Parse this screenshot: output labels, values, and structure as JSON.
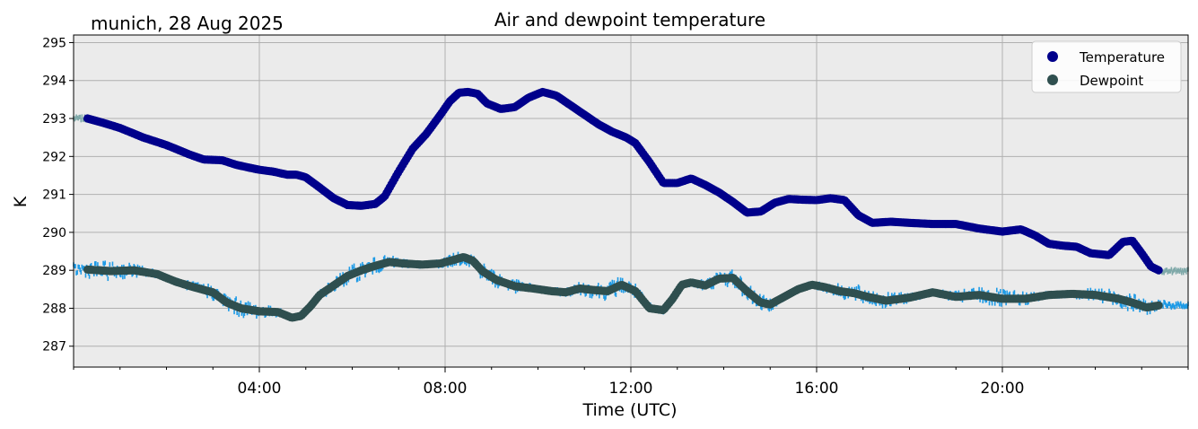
{
  "header": {
    "location_date": "munich, 28 Aug 2025",
    "title": "Air and dewpoint temperature"
  },
  "colors": {
    "background": "#ebebeb",
    "grid": "#b0b0b0",
    "temperature": "#00008b",
    "dewpoint": "#2f4f4f",
    "temperature_raw": "#7fa9a9",
    "dewpoint_raw": "#1e9be6"
  },
  "chart_data": {
    "type": "scatter",
    "title": "Air and dewpoint temperature",
    "xlabel": "Time (UTC)",
    "ylabel": "K",
    "xlim_hours": [
      0,
      24
    ],
    "ylim": [
      286.45,
      295.2
    ],
    "x_ticks": [
      "04:00",
      "08:00",
      "12:00",
      "16:00",
      "20:00"
    ],
    "x_tick_hours": [
      4,
      8,
      12,
      16,
      20
    ],
    "y_ticks": [
      287,
      288,
      289,
      290,
      291,
      292,
      293,
      294,
      295
    ],
    "grid": true,
    "legend_position": "top-right",
    "series": [
      {
        "name": "Temperature",
        "color": "#00008b",
        "x_hours": [
          0.3,
          0.6,
          1.0,
          1.5,
          2.0,
          2.5,
          2.8,
          3.2,
          3.5,
          3.8,
          4.0,
          4.3,
          4.6,
          4.8,
          5.0,
          5.3,
          5.6,
          5.9,
          6.2,
          6.5,
          6.7,
          7.0,
          7.3,
          7.6,
          7.9,
          8.1,
          8.3,
          8.5,
          8.7,
          8.9,
          9.2,
          9.5,
          9.8,
          10.1,
          10.4,
          10.7,
          11.0,
          11.3,
          11.6,
          11.9,
          12.1,
          12.4,
          12.7,
          13.0,
          13.3,
          13.6,
          13.9,
          14.2,
          14.5,
          14.8,
          15.1,
          15.4,
          15.7,
          16.0,
          16.3,
          16.6,
          16.9,
          17.2,
          17.6,
          18.0,
          18.5,
          19.0,
          19.5,
          20.0,
          20.4,
          20.7,
          21.0,
          21.3,
          21.6,
          21.9,
          22.3,
          22.6,
          22.8,
          23.0,
          23.2,
          23.4
        ],
        "values": [
          293.0,
          292.9,
          292.75,
          292.5,
          292.3,
          292.05,
          291.92,
          291.9,
          291.78,
          291.7,
          291.65,
          291.6,
          291.52,
          291.52,
          291.45,
          291.18,
          290.9,
          290.72,
          290.7,
          290.75,
          290.95,
          291.6,
          292.2,
          292.6,
          293.1,
          293.45,
          293.68,
          293.7,
          293.65,
          293.4,
          293.25,
          293.3,
          293.55,
          293.7,
          293.6,
          293.35,
          293.1,
          292.85,
          292.65,
          292.5,
          292.35,
          291.85,
          291.3,
          291.3,
          291.42,
          291.25,
          291.05,
          290.8,
          290.52,
          290.55,
          290.78,
          290.88,
          290.86,
          290.85,
          290.9,
          290.85,
          290.45,
          290.25,
          290.28,
          290.25,
          290.22,
          290.22,
          290.1,
          290.02,
          290.08,
          289.92,
          289.7,
          289.65,
          289.62,
          289.45,
          289.4,
          289.75,
          289.78,
          289.45,
          289.1,
          288.98
        ]
      },
      {
        "name": "Dewpoint",
        "color": "#2f4f4f",
        "x_hours": [
          0.3,
          0.8,
          1.3,
          1.8,
          2.2,
          2.6,
          3.0,
          3.3,
          3.6,
          4.0,
          4.4,
          4.7,
          4.9,
          5.1,
          5.3,
          5.6,
          5.9,
          6.2,
          6.5,
          6.8,
          7.1,
          7.5,
          7.9,
          8.2,
          8.4,
          8.6,
          8.8,
          9.1,
          9.5,
          9.9,
          10.3,
          10.6,
          10.9,
          11.2,
          11.5,
          11.8,
          12.1,
          12.4,
          12.7,
          12.9,
          13.1,
          13.3,
          13.6,
          13.9,
          14.2,
          14.5,
          14.8,
          15.0,
          15.3,
          15.6,
          15.9,
          16.2,
          16.5,
          16.8,
          17.1,
          17.5,
          18.0,
          18.5,
          19.0,
          19.5,
          20.0,
          20.5,
          21.0,
          21.5,
          22.0,
          22.5,
          22.8,
          23.1,
          23.4
        ],
        "values": [
          289.02,
          288.98,
          289.0,
          288.9,
          288.7,
          288.55,
          288.42,
          288.15,
          288.0,
          287.92,
          287.9,
          287.75,
          287.8,
          288.05,
          288.35,
          288.6,
          288.85,
          289.0,
          289.12,
          289.22,
          289.18,
          289.15,
          289.18,
          289.28,
          289.35,
          289.25,
          288.98,
          288.75,
          288.58,
          288.52,
          288.45,
          288.42,
          288.52,
          288.48,
          288.45,
          288.62,
          288.45,
          288.0,
          287.95,
          288.25,
          288.62,
          288.68,
          288.6,
          288.78,
          288.8,
          288.45,
          288.15,
          288.1,
          288.3,
          288.5,
          288.62,
          288.55,
          288.45,
          288.4,
          288.3,
          288.2,
          288.28,
          288.42,
          288.3,
          288.35,
          288.25,
          288.25,
          288.35,
          288.38,
          288.35,
          288.25,
          288.15,
          288.02,
          288.08
        ]
      }
    ]
  }
}
